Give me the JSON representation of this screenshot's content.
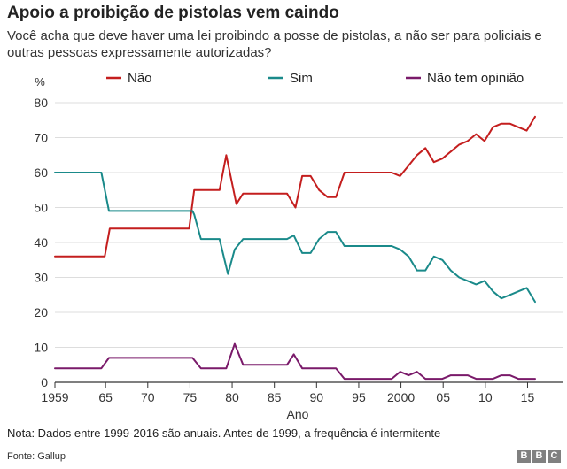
{
  "title": "Apoio a proibição de pistolas vem caindo",
  "subtitle": "Você acha que deve haver uma lei proibindo a posse de pistolas, a não ser para policiais e outras pessoas expressamente autorizadas?",
  "note": "Nota: Dados entre 1999-2016 são anuais. Antes de 1999, a frequência é intermitente",
  "source": "Fonte: Gallup",
  "logo": [
    "B",
    "B",
    "C"
  ],
  "chart_data": {
    "type": "line",
    "title": "Apoio a proibição de pistolas vem caindo",
    "xlabel": "Ano",
    "ylabel": "%",
    "xlim": [
      1959,
      2016
    ],
    "ylim": [
      0,
      80
    ],
    "grid": true,
    "legend_position": "top",
    "y_ticks": [
      0,
      10,
      20,
      30,
      40,
      50,
      60,
      70,
      80
    ],
    "x_ticks": [
      {
        "value": 1959,
        "label": "1959"
      },
      {
        "value": 1965,
        "label": "65"
      },
      {
        "value": 1970,
        "label": "70"
      },
      {
        "value": 1975,
        "label": "75"
      },
      {
        "value": 1980,
        "label": "80"
      },
      {
        "value": 1985,
        "label": "85"
      },
      {
        "value": 1990,
        "label": "90"
      },
      {
        "value": 1995,
        "label": "95"
      },
      {
        "value": 2000,
        "label": "2000"
      },
      {
        "value": 2005,
        "label": "05"
      },
      {
        "value": 2010,
        "label": "10"
      },
      {
        "value": 2015,
        "label": "15"
      }
    ],
    "series": [
      {
        "name": "Não",
        "color": "#c41e1e",
        "points": [
          [
            1959,
            36
          ],
          [
            1964.9,
            36
          ],
          [
            1965.5,
            44
          ],
          [
            1974.9,
            44
          ],
          [
            1975.5,
            55
          ],
          [
            1978.5,
            55
          ],
          [
            1979.3,
            65
          ],
          [
            1980.5,
            51
          ],
          [
            1981.3,
            54
          ],
          [
            1982.5,
            54
          ],
          [
            1986.5,
            54
          ],
          [
            1987.5,
            50
          ],
          [
            1988.3,
            59
          ],
          [
            1989.3,
            59
          ],
          [
            1990.3,
            55
          ],
          [
            1991.3,
            53
          ],
          [
            1992.3,
            53
          ],
          [
            1993.3,
            60
          ],
          [
            1995.3,
            60
          ],
          [
            1998.9,
            60
          ],
          [
            1999.9,
            59
          ],
          [
            2000.9,
            62
          ],
          [
            2001.9,
            65
          ],
          [
            2002.9,
            67
          ],
          [
            2003.9,
            63
          ],
          [
            2004.9,
            64
          ],
          [
            2005.9,
            66
          ],
          [
            2006.9,
            68
          ],
          [
            2007.9,
            69
          ],
          [
            2008.9,
            71
          ],
          [
            2009.9,
            69
          ],
          [
            2010.9,
            73
          ],
          [
            2011.9,
            74
          ],
          [
            2012.9,
            74
          ],
          [
            2013.9,
            73
          ],
          [
            2014.9,
            72
          ],
          [
            2015.9,
            76
          ]
        ]
      },
      {
        "name": "Sim",
        "color": "#1a8a8a",
        "points": [
          [
            1959,
            60
          ],
          [
            1964.5,
            60
          ],
          [
            1965.4,
            49
          ],
          [
            1975.3,
            49
          ],
          [
            1975.5,
            48
          ],
          [
            1976.3,
            41
          ],
          [
            1978.5,
            41
          ],
          [
            1979.5,
            31
          ],
          [
            1980.3,
            38
          ],
          [
            1981.3,
            41
          ],
          [
            1982.3,
            41
          ],
          [
            1986.5,
            41
          ],
          [
            1987.3,
            42
          ],
          [
            1988.3,
            37
          ],
          [
            1989.3,
            37
          ],
          [
            1990.3,
            41
          ],
          [
            1991.3,
            43
          ],
          [
            1992.3,
            43
          ],
          [
            1993.3,
            39
          ],
          [
            1995.3,
            39
          ],
          [
            1998.9,
            39
          ],
          [
            1999.9,
            38
          ],
          [
            2000.9,
            36
          ],
          [
            2001.9,
            32
          ],
          [
            2002.9,
            32
          ],
          [
            2003.9,
            36
          ],
          [
            2004.9,
            35
          ],
          [
            2005.9,
            32
          ],
          [
            2006.9,
            30
          ],
          [
            2007.9,
            29
          ],
          [
            2008.9,
            28
          ],
          [
            2009.9,
            29
          ],
          [
            2010.9,
            26
          ],
          [
            2011.9,
            24
          ],
          [
            2012.9,
            25
          ],
          [
            2013.9,
            26
          ],
          [
            2014.9,
            27
          ],
          [
            2015.9,
            23
          ]
        ]
      },
      {
        "name": "Não tem opinião",
        "color": "#7a1a6a",
        "points": [
          [
            1959,
            4
          ],
          [
            1964.5,
            4
          ],
          [
            1965.4,
            7
          ],
          [
            1975.3,
            7
          ],
          [
            1976.3,
            4
          ],
          [
            1979.3,
            4
          ],
          [
            1980.3,
            11
          ],
          [
            1981.3,
            5
          ],
          [
            1986.5,
            5
          ],
          [
            1987.3,
            8
          ],
          [
            1988.3,
            4
          ],
          [
            1992.3,
            4
          ],
          [
            1993.3,
            1
          ],
          [
            1998.9,
            1
          ],
          [
            1999.9,
            3
          ],
          [
            2000.9,
            2
          ],
          [
            2001.9,
            3
          ],
          [
            2002.9,
            1
          ],
          [
            2004.9,
            1
          ],
          [
            2005.9,
            2
          ],
          [
            2007.9,
            2
          ],
          [
            2008.9,
            1
          ],
          [
            2010.9,
            1
          ],
          [
            2011.9,
            2
          ],
          [
            2012.9,
            2
          ],
          [
            2013.9,
            1
          ],
          [
            2015.9,
            1
          ]
        ]
      }
    ]
  }
}
